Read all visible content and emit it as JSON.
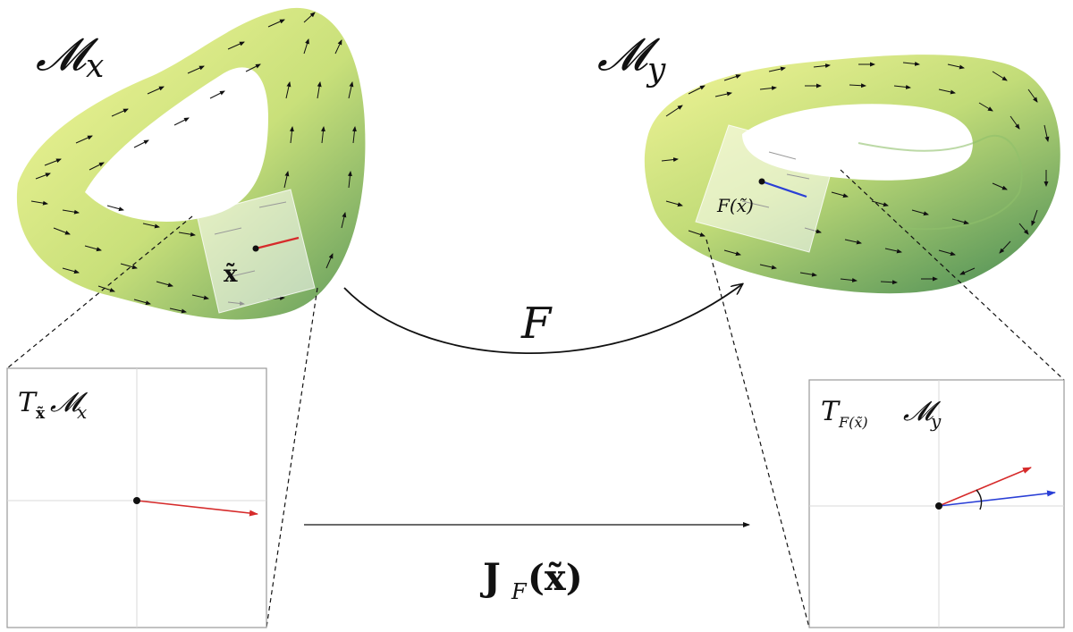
{
  "labels": {
    "manifold_x": "𝓜",
    "manifold_x_sub": "x",
    "manifold_y": "𝓜",
    "manifold_y_sub": "y",
    "point_x": "x̃",
    "point_fx": "F(x̃)",
    "map_F": "F",
    "jacobian_J": "J",
    "jacobian_sub": "F",
    "jacobian_arg": "(x̃)",
    "tangent_left_T": "T",
    "tangent_left_sub": "x̃",
    "tangent_left_M": "𝓜",
    "tangent_left_msub": "x",
    "tangent_right_T": "T",
    "tangent_right_sub": "F(x̃)",
    "tangent_right_M": "𝓜",
    "tangent_right_msub": "y"
  },
  "colors": {
    "surface_light": "#f4f79a",
    "surface_mid": "#c9e07a",
    "surface_dark": "#5f9a5c",
    "vector_red": "#d62b2b",
    "vector_blue": "#2a3fd6",
    "field_arrow": "#111111",
    "panel_border": "#9a9a9a",
    "grid_line": "#d8d8d8"
  }
}
